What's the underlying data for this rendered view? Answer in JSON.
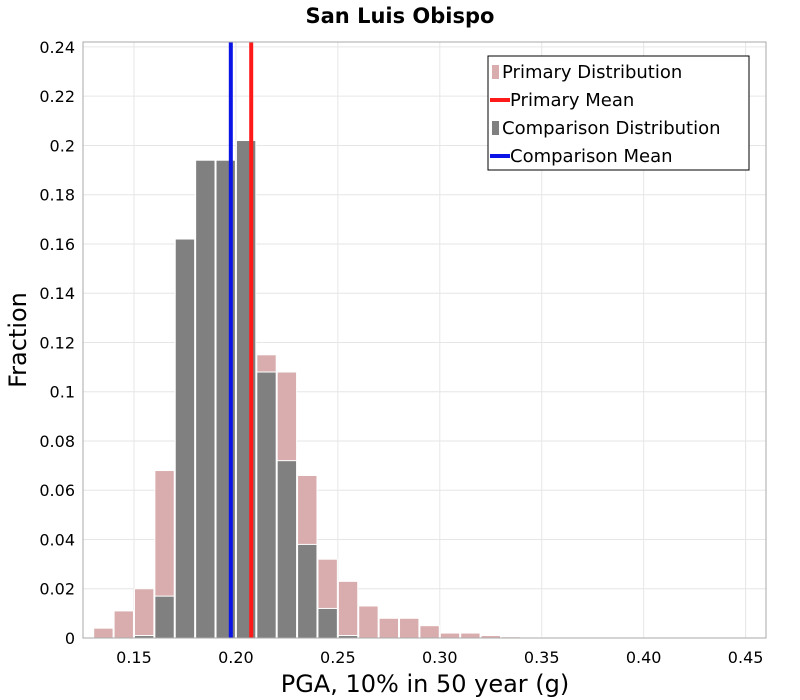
{
  "chart_data": {
    "type": "bar",
    "title": "San Luis Obispo",
    "xlabel": "PGA, 10% in 50 year (g)",
    "ylabel": "Fraction",
    "xlim": [
      0.125,
      0.46
    ],
    "ylim": [
      0,
      0.242
    ],
    "grid": true,
    "legend_position": "top-right",
    "x_ticks": [
      "0.15",
      "0.20",
      "0.25",
      "0.30",
      "0.35",
      "0.40",
      "0.45"
    ],
    "y_ticks": [
      "0",
      "0.02",
      "0.04",
      "0.06",
      "0.08",
      "0.1",
      "0.12",
      "0.14",
      "0.16",
      "0.18",
      "0.2",
      "0.22",
      "0.24"
    ],
    "bin_width": 0.01,
    "series": [
      {
        "name": "Primary Distribution",
        "kind": "histogram",
        "color": "#d9adad",
        "bins": [
          {
            "x": 0.135,
            "value": 0.004
          },
          {
            "x": 0.145,
            "value": 0.011
          },
          {
            "x": 0.155,
            "value": 0.02
          },
          {
            "x": 0.165,
            "value": 0.068
          },
          {
            "x": 0.175,
            "value": 0.162
          },
          {
            "x": 0.185,
            "value": 0.194
          },
          {
            "x": 0.195,
            "value": 0.194
          },
          {
            "x": 0.205,
            "value": 0.202
          },
          {
            "x": 0.215,
            "value": 0.115
          },
          {
            "x": 0.225,
            "value": 0.108
          },
          {
            "x": 0.235,
            "value": 0.066
          },
          {
            "x": 0.245,
            "value": 0.032
          },
          {
            "x": 0.255,
            "value": 0.023
          },
          {
            "x": 0.265,
            "value": 0.013
          },
          {
            "x": 0.275,
            "value": 0.008
          },
          {
            "x": 0.285,
            "value": 0.008
          },
          {
            "x": 0.295,
            "value": 0.005
          },
          {
            "x": 0.305,
            "value": 0.002
          },
          {
            "x": 0.315,
            "value": 0.002
          },
          {
            "x": 0.325,
            "value": 0.001
          },
          {
            "x": 0.335,
            "value": 0.0005
          },
          {
            "x": 0.345,
            "value": 0.0004
          },
          {
            "x": 0.355,
            "value": 0.0003
          },
          {
            "x": 0.365,
            "value": 0.0003
          },
          {
            "x": 0.375,
            "value": 0.0002
          },
          {
            "x": 0.385,
            "value": 0.0002
          },
          {
            "x": 0.395,
            "value": 0.0001
          },
          {
            "x": 0.405,
            "value": 0.0001
          },
          {
            "x": 0.415,
            "value": 0.0001
          },
          {
            "x": 0.425,
            "value": 0.0001
          },
          {
            "x": 0.435,
            "value": 0.0001
          }
        ]
      },
      {
        "name": "Comparison Distribution",
        "kind": "histogram",
        "color": "#808080",
        "bins": [
          {
            "x": 0.155,
            "value": 0.001
          },
          {
            "x": 0.165,
            "value": 0.017
          },
          {
            "x": 0.175,
            "value": 0.162
          },
          {
            "x": 0.185,
            "value": 0.194
          },
          {
            "x": 0.195,
            "value": 0.194
          },
          {
            "x": 0.205,
            "value": 0.202
          },
          {
            "x": 0.215,
            "value": 0.108
          },
          {
            "x": 0.225,
            "value": 0.072
          },
          {
            "x": 0.235,
            "value": 0.038
          },
          {
            "x": 0.245,
            "value": 0.012
          },
          {
            "x": 0.255,
            "value": 0.001
          }
        ]
      },
      {
        "name": "Primary Mean",
        "kind": "vline",
        "color": "#ff1a1a",
        "x": 0.2075
      },
      {
        "name": "Comparison Mean",
        "kind": "vline",
        "color": "#0a14e6",
        "x": 0.1975
      }
    ]
  }
}
